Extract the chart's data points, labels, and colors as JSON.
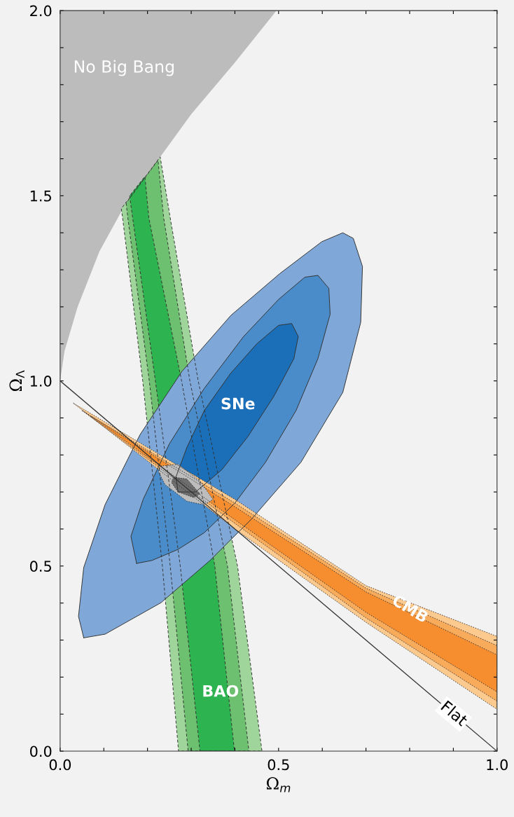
{
  "chart_data": {
    "type": "area",
    "xlabel": "Ω$_{m}$",
    "ylabel": "Ω$_{Λ}$",
    "xlim": [
      0,
      1
    ],
    "ylim": [
      0,
      2
    ],
    "xticks": [
      {
        "value": 0,
        "label": "0.0"
      },
      {
        "value": 0.1,
        "label": null
      },
      {
        "value": 0.2,
        "label": null
      },
      {
        "value": 0.3,
        "label": null
      },
      {
        "value": 0.4,
        "label": null
      },
      {
        "value": 0.5,
        "label": "0.5"
      },
      {
        "value": 0.6,
        "label": null
      },
      {
        "value": 0.7,
        "label": null
      },
      {
        "value": 0.8,
        "label": null
      },
      {
        "value": 0.9,
        "label": null
      },
      {
        "value": 1,
        "label": "1.0"
      }
    ],
    "yticks": [
      {
        "value": 0,
        "label": "0.0"
      },
      {
        "value": 0.1,
        "label": null
      },
      {
        "value": 0.2,
        "label": null
      },
      {
        "value": 0.3,
        "label": null
      },
      {
        "value": 0.4,
        "label": null
      },
      {
        "value": 0.5,
        "label": "0.5"
      },
      {
        "value": 0.6,
        "label": null
      },
      {
        "value": 0.7,
        "label": null
      },
      {
        "value": 0.8,
        "label": null
      },
      {
        "value": 0.9,
        "label": null
      },
      {
        "value": 1,
        "label": "1.0"
      },
      {
        "value": 1.1,
        "label": null
      },
      {
        "value": 1.2,
        "label": null
      },
      {
        "value": 1.3,
        "label": null
      },
      {
        "value": 1.4,
        "label": null
      },
      {
        "value": 1.5,
        "label": "1.5"
      },
      {
        "value": 1.6,
        "label": null
      },
      {
        "value": 1.7,
        "label": null
      },
      {
        "value": 1.8,
        "label": null
      },
      {
        "value": 1.9,
        "label": null
      },
      {
        "value": 2,
        "label": "2.0"
      }
    ],
    "grid": false,
    "legend": false,
    "series": [
      {
        "color": "#bcbcbc",
        "line_style": "none",
        "x": [
          0,
          0.01,
          0.04,
          0.09,
          0.16,
          0.22,
          0.3,
          0.4,
          0.495,
          0
        ],
        "values": [
          1,
          1.08,
          1.2,
          1.35,
          1.5,
          1.59,
          1.72,
          1.86,
          2,
          2
        ]
      },
      {
        "color": "#9fd49a",
        "line_style": "dashed",
        "x": [
          0.14,
          0.143,
          0.189,
          0.234,
          0.271,
          0.462,
          0.406,
          0.316,
          0.252,
          0.229
        ],
        "values": [
          1.465,
          1.44,
          1.0,
          0.5,
          0,
          0,
          0.5,
          1.0,
          1.44,
          1.605
        ]
      },
      {
        "color": "#6cc06f",
        "line_style": "dashed",
        "x": [
          0.151,
          0.155,
          0.204,
          0.252,
          0.293,
          0.432,
          0.383,
          0.297,
          0.237,
          0.224
        ],
        "values": [
          1.48,
          1.44,
          1.0,
          0.5,
          0,
          0,
          0.5,
          1.0,
          1.44,
          1.596
        ]
      },
      {
        "color": "#2db34f",
        "line_style": "dashed",
        "x": [
          0.159,
          0.166,
          0.218,
          0.275,
          0.32,
          0.399,
          0.354,
          0.278,
          0.203,
          0.194
        ],
        "values": [
          1.5,
          1.44,
          1.0,
          0.5,
          0,
          0,
          0.5,
          1.0,
          1.44,
          1.552
        ]
      },
      {
        "color": "#7fa8d8",
        "line_style": "solid",
        "x": [
          0.054,
          0.103,
          0.231,
          0.343,
          0.439,
          0.551,
          0.647,
          0.688,
          0.692,
          0.671,
          0.647,
          0.599,
          0.503,
          0.391,
          0.279,
          0.183,
          0.103,
          0.054,
          0.042
        ],
        "values": [
          0.306,
          0.316,
          0.401,
          0.515,
          0.628,
          0.78,
          0.969,
          1.158,
          1.309,
          1.385,
          1.4,
          1.376,
          1.29,
          1.177,
          1.026,
          0.855,
          0.666,
          0.496,
          0.364
        ]
      },
      {
        "color": "#4a8cc9",
        "line_style": "solid",
        "x": [
          0.175,
          0.21,
          0.27,
          0.33,
          0.4,
          0.47,
          0.54,
          0.59,
          0.618,
          0.615,
          0.59,
          0.56,
          0.5,
          0.42,
          0.33,
          0.25,
          0.19,
          0.162
        ],
        "values": [
          0.507,
          0.515,
          0.545,
          0.59,
          0.67,
          0.78,
          0.92,
          1.06,
          1.18,
          1.25,
          1.285,
          1.28,
          1.22,
          1.12,
          0.98,
          0.83,
          0.68,
          0.58
        ]
      },
      {
        "color": "#1a6fb8",
        "line_style": "solid",
        "x": [
          0.27,
          0.31,
          0.37,
          0.43,
          0.49,
          0.535,
          0.545,
          0.53,
          0.5,
          0.45,
          0.39,
          0.33,
          0.29,
          0.265
        ],
        "values": [
          0.7,
          0.7,
          0.76,
          0.85,
          0.96,
          1.06,
          1.12,
          1.155,
          1.15,
          1.1,
          1.02,
          0.92,
          0.82,
          0.74
        ]
      },
      {
        "color": "#fcc98e",
        "line_style": "dotted",
        "x": [
          0.03,
          0.4,
          0.7,
          1,
          1,
          0.7,
          0.4
        ],
        "values": [
          0.94,
          0.68,
          0.447,
          0.31,
          0.113,
          0.348,
          0.6
        ]
      },
      {
        "color": "#f9ab5c",
        "line_style": "dotted",
        "x": [
          0.05,
          0.4,
          0.7,
          1,
          1,
          0.7,
          0.4
        ],
        "values": [
          0.92,
          0.67,
          0.44,
          0.285,
          0.135,
          0.36,
          0.615
        ]
      },
      {
        "color": "#f68d2e",
        "line_style": "dotted",
        "x": [
          0.07,
          0.4,
          0.7,
          1,
          1,
          0.7,
          0.4
        ],
        "values": [
          0.905,
          0.66,
          0.43,
          0.26,
          0.16,
          0.375,
          0.625
        ]
      },
      {
        "color": "#bdbdbd",
        "line_style": "dotted",
        "x": [
          0.23,
          0.27,
          0.32,
          0.35,
          0.33,
          0.29,
          0.24,
          0.225
        ],
        "values": [
          0.77,
          0.775,
          0.73,
          0.68,
          0.665,
          0.675,
          0.72,
          0.755
        ]
      },
      {
        "color": "#6e6e6e",
        "line_style": "dotted",
        "x": [
          0.26,
          0.29,
          0.32,
          0.305,
          0.27,
          0.255
        ],
        "values": [
          0.74,
          0.735,
          0.695,
          0.685,
          0.7,
          0.725
        ]
      },
      {
        "type": "line",
        "color": "#333333",
        "line_style": "solid",
        "x": [
          0,
          1
        ],
        "values": [
          1,
          0
        ]
      }
    ],
    "annotations": [
      "No Big Bang",
      "SNe",
      "BAO",
      {
        "text": "CMB",
        "x": 0.8,
        "y": 0.382
      },
      {
        "text": "Flat",
        "x": 0.9,
        "y": 0.1
      }
    ]
  }
}
